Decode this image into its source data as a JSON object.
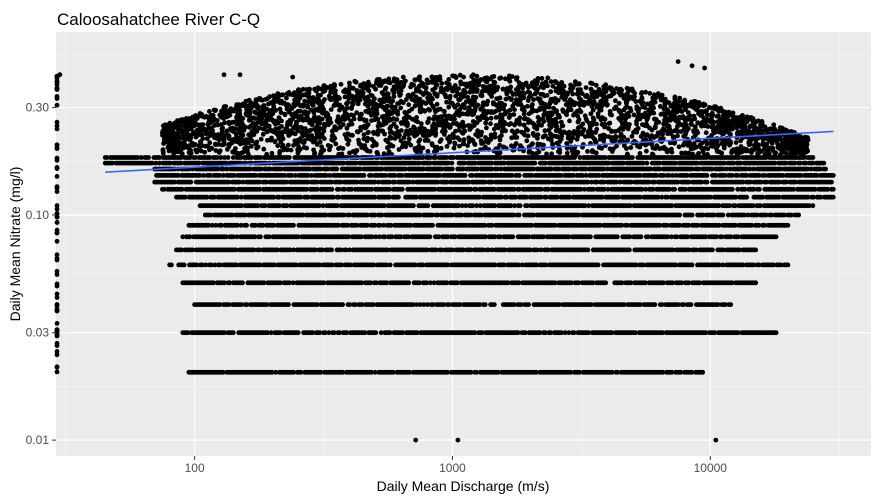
{
  "chart_data": {
    "type": "scatter",
    "title": "Caloosahatchee River C-Q",
    "xlabel": "Daily Mean Discharge (m/s)",
    "ylabel": "Daily Mean Nitrate (mg/l)",
    "x_scale": "log10",
    "y_scale": "log10",
    "xlim": [
      29,
      42000
    ],
    "ylim": [
      0.0085,
      0.65
    ],
    "x_ticks": [
      {
        "value": 100,
        "label": "100"
      },
      {
        "value": 1000,
        "label": "1000"
      },
      {
        "value": 10000,
        "label": "10000"
      }
    ],
    "y_ticks": [
      {
        "value": 0.01,
        "label": "0.01"
      },
      {
        "value": 0.03,
        "label": "0.03"
      },
      {
        "value": 0.1,
        "label": "0.10"
      },
      {
        "value": 0.3,
        "label": "0.30"
      }
    ],
    "grid": true,
    "background": "#ebebeb",
    "point_color": "#000000",
    "trend_color": "#3366ff",
    "trend_line": {
      "x": [
        45,
        30000
      ],
      "y": [
        0.155,
        0.235
      ]
    },
    "point_bands": [
      {
        "y": 0.02,
        "x_from": 95,
        "x_to": 9500
      },
      {
        "y": 0.03,
        "x_from": 90,
        "x_to": 18000
      },
      {
        "y": 0.04,
        "x_from": 100,
        "x_to": 12000
      },
      {
        "y": 0.05,
        "x_from": 90,
        "x_to": 15000
      },
      {
        "y": 0.06,
        "x_from": 80,
        "x_to": 20000
      },
      {
        "y": 0.07,
        "x_from": 85,
        "x_to": 15000
      },
      {
        "y": 0.08,
        "x_from": 90,
        "x_to": 18000
      },
      {
        "y": 0.09,
        "x_from": 95,
        "x_to": 20000
      },
      {
        "y": 0.1,
        "x_from": 110,
        "x_to": 22000
      },
      {
        "y": 0.11,
        "x_from": 105,
        "x_to": 25000
      },
      {
        "y": 0.12,
        "x_from": 85,
        "x_to": 30000
      },
      {
        "y": 0.13,
        "x_from": 75,
        "x_to": 30000
      },
      {
        "y": 0.14,
        "x_from": 70,
        "x_to": 30000
      },
      {
        "y": 0.15,
        "x_from": 70,
        "x_to": 30000
      },
      {
        "y": 0.16,
        "x_from": 70,
        "x_to": 28000
      },
      {
        "y": 0.17,
        "x_from": 45,
        "x_to": 28000
      },
      {
        "y": 0.18,
        "x_from": 45,
        "x_to": 25000
      }
    ],
    "scatter_points": [
      {
        "x": 720,
        "y": 0.01
      },
      {
        "x": 1050,
        "y": 0.01
      },
      {
        "x": 10500,
        "y": 0.01
      },
      {
        "x": 7500,
        "y": 0.48
      },
      {
        "x": 8500,
        "y": 0.46
      },
      {
        "x": 9500,
        "y": 0.45
      },
      {
        "x": 130,
        "y": 0.42
      },
      {
        "x": 150,
        "y": 0.42
      },
      {
        "x": 240,
        "y": 0.41
      },
      {
        "x": 30,
        "y": 0.42
      }
    ]
  }
}
